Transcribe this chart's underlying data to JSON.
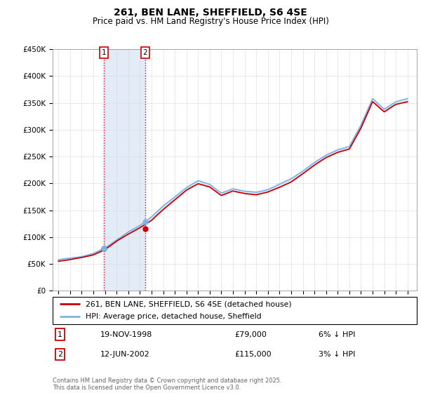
{
  "title": "261, BEN LANE, SHEFFIELD, S6 4SE",
  "subtitle": "Price paid vs. HM Land Registry's House Price Index (HPI)",
  "ylim": [
    0,
    450000
  ],
  "yticks": [
    0,
    50000,
    100000,
    150000,
    200000,
    250000,
    300000,
    350000,
    400000,
    450000
  ],
  "ytick_labels": [
    "£0",
    "£50K",
    "£100K",
    "£150K",
    "£200K",
    "£250K",
    "£300K",
    "£350K",
    "£400K",
    "£450K"
  ],
  "xlim": [
    1994.5,
    2025.8
  ],
  "hpi_color": "#7ab4e8",
  "price_color": "#cc0000",
  "shade_color": "#c8d8f0",
  "sale1_date": 1998.88,
  "sale1_price": 79000,
  "sale2_date": 2002.45,
  "sale2_price": 115000,
  "legend_line1": "261, BEN LANE, SHEFFIELD, S6 4SE (detached house)",
  "legend_line2": "HPI: Average price, detached house, Sheffield",
  "table_row1_num": "1",
  "table_row1_date": "19-NOV-1998",
  "table_row1_price": "£79,000",
  "table_row1_hpi": "6% ↓ HPI",
  "table_row2_num": "2",
  "table_row2_date": "12-JUN-2002",
  "table_row2_price": "£115,000",
  "table_row2_hpi": "3% ↓ HPI",
  "footer": "Contains HM Land Registry data © Crown copyright and database right 2025.\nThis data is licensed under the Open Government Licence v3.0.",
  "hpi_knots_x": [
    1995,
    1996,
    1997,
    1998,
    1999,
    2000,
    2001,
    2002,
    2003,
    2004,
    2005,
    2006,
    2007,
    2008,
    2009,
    2010,
    2011,
    2012,
    2013,
    2014,
    2015,
    2016,
    2017,
    2018,
    2019,
    2020,
    2021,
    2022,
    2023,
    2024,
    2025
  ],
  "hpi_knots_y": [
    58000,
    61000,
    64000,
    70000,
    80000,
    95000,
    110000,
    122000,
    138000,
    158000,
    175000,
    192000,
    205000,
    198000,
    182000,
    190000,
    185000,
    183000,
    188000,
    198000,
    208000,
    222000,
    238000,
    252000,
    262000,
    268000,
    308000,
    358000,
    338000,
    352000,
    358000
  ],
  "price_knots_x": [
    1995,
    1996,
    1997,
    1998,
    1999,
    2000,
    2001,
    2002,
    2003,
    2004,
    2005,
    2006,
    2007,
    2008,
    2009,
    2010,
    2011,
    2012,
    2013,
    2014,
    2015,
    2016,
    2017,
    2018,
    2019,
    2020,
    2021,
    2022,
    2023,
    2024,
    2025
  ],
  "price_knots_y": [
    55000,
    58000,
    62000,
    67000,
    77000,
    93000,
    106000,
    118000,
    132000,
    152000,
    170000,
    188000,
    200000,
    194000,
    178000,
    186000,
    181000,
    179000,
    184000,
    193000,
    203000,
    218000,
    234000,
    248000,
    258000,
    264000,
    303000,
    352000,
    333000,
    347000,
    352000
  ]
}
